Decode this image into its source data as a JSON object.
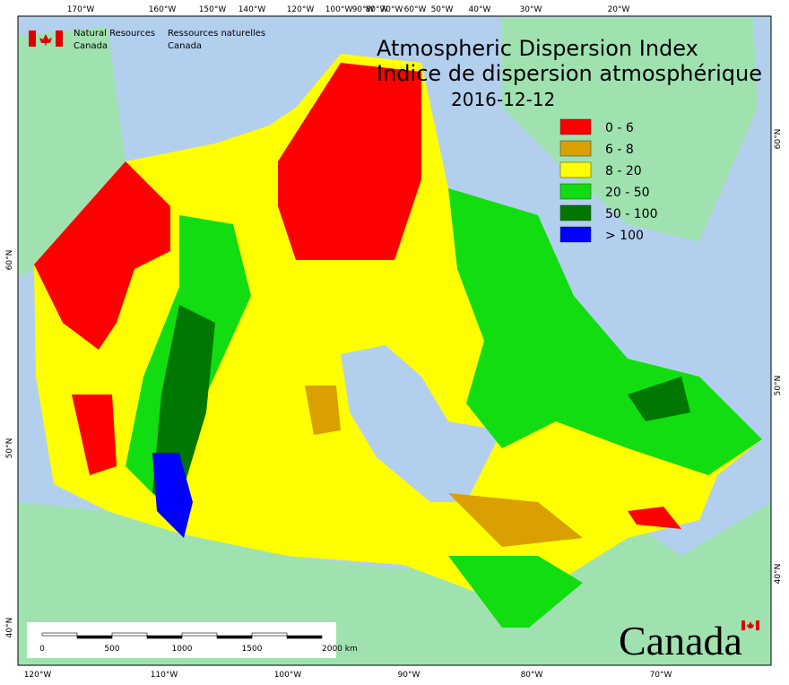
{
  "header": {
    "agency_en": [
      "Natural Resources",
      "Canada"
    ],
    "agency_fr": [
      "Ressources naturelles",
      "Canada"
    ]
  },
  "title": [
    "Atmospheric Dispersion Index",
    "Indice de dispersion atmosphérique"
  ],
  "date": "2016-12-12",
  "legend": [
    {
      "label": "0 - 6",
      "color": "#ff0000"
    },
    {
      "label": "6 - 8",
      "color": "#d9a000"
    },
    {
      "label": "8 - 20",
      "color": "#ffff00"
    },
    {
      "label": "20 - 50",
      "color": "#11dd11"
    },
    {
      "label": "50 - 100",
      "color": "#007700"
    },
    {
      "label": "> 100",
      "color": "#0000ff"
    }
  ],
  "top_labels": [
    "170°W",
    "160°W",
    "150°W",
    "140°W",
    "120°W",
    "100°W",
    "90°W",
    "80°W",
    "70°W",
    "60°W",
    "50°W",
    "40°W",
    "30°W",
    "20°W"
  ],
  "bottom_labels": [
    "120°W",
    "110°W",
    "100°W",
    "90°W",
    "80°W",
    "70°W"
  ],
  "left_labels": [
    "60°N",
    "50°N",
    "40°N"
  ],
  "right_labels": [
    "60°N",
    "50°N",
    "40°N"
  ],
  "scale": [
    "0",
    "500",
    "1000",
    "1500",
    "2000  km"
  ],
  "wordmark": "Canada"
}
